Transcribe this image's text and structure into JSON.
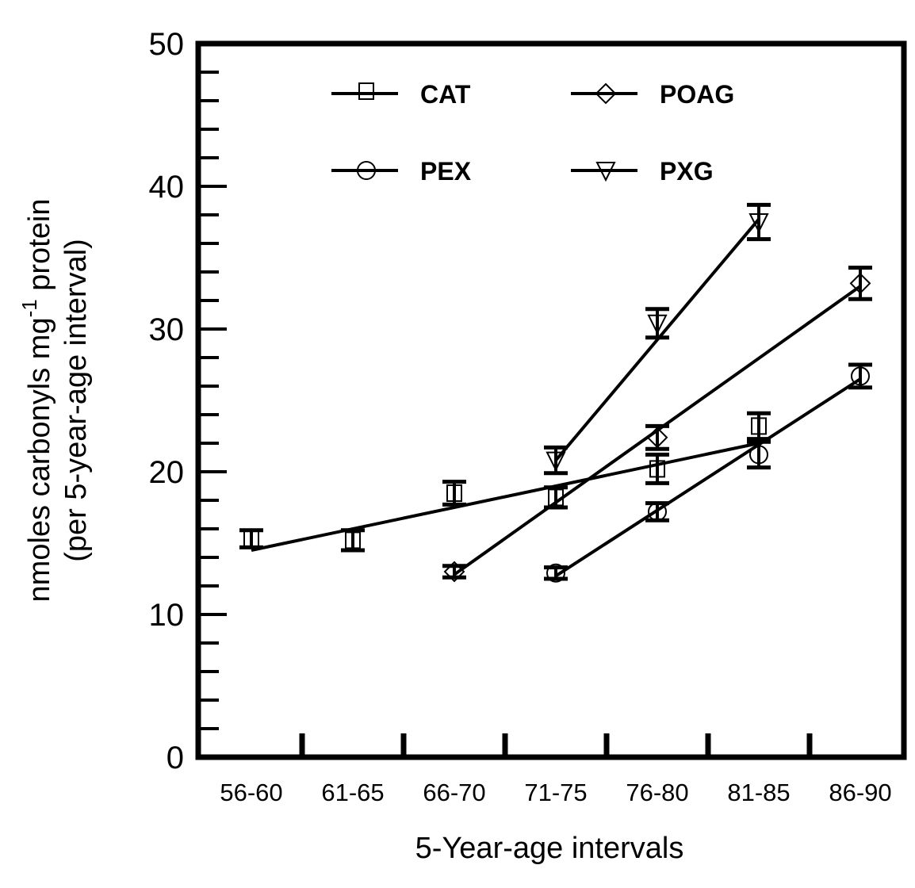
{
  "chart_data": {
    "type": "line",
    "title": "",
    "xlabel": "5-Year-age intervals",
    "ylabel_line1": "nmoles carbonyls mg",
    "ylabel_sup": "-1",
    "ylabel_line1_end": " protein",
    "ylabel_line2": "(per 5-year-age interval)",
    "ylim": [
      0,
      50
    ],
    "yticks": [
      0,
      10,
      20,
      30,
      40,
      50
    ],
    "yminor_step": 2,
    "categories": [
      "56-60",
      "61-65",
      "66-70",
      "71-75",
      "76-80",
      "81-85",
      "86-90"
    ],
    "grid": false,
    "legend_position": "top-center",
    "series": [
      {
        "name": "CAT",
        "marker": "square",
        "values": [
          15.3,
          15.2,
          18.5,
          18.2,
          20.2,
          23.2,
          null
        ],
        "errors": [
          0.6,
          0.7,
          0.8,
          0.7,
          1.0,
          0.9,
          null
        ],
        "fit": [
          14.5,
          22.0
        ],
        "fit_range": [
          "56-60",
          "81-85"
        ]
      },
      {
        "name": "POAG",
        "marker": "diamond",
        "values": [
          null,
          null,
          13.0,
          null,
          22.4,
          null,
          33.2
        ],
        "errors": [
          null,
          null,
          0.4,
          null,
          0.8,
          null,
          1.1
        ],
        "fit": [
          12.8,
          33.0
        ],
        "fit_range": [
          "66-70",
          "86-90"
        ]
      },
      {
        "name": "PEX",
        "marker": "circle",
        "values": [
          null,
          null,
          null,
          12.9,
          17.2,
          21.2,
          26.7
        ],
        "errors": [
          null,
          null,
          null,
          0.4,
          0.6,
          0.9,
          0.8
        ],
        "fit": [
          12.7,
          26.5
        ],
        "fit_range": [
          "71-75",
          "86-90"
        ]
      },
      {
        "name": "PXG",
        "marker": "triangle-down",
        "values": [
          null,
          null,
          null,
          20.8,
          30.4,
          37.5,
          null
        ],
        "errors": [
          null,
          null,
          null,
          0.9,
          1.0,
          1.2,
          null
        ],
        "fit": [
          20.8,
          37.7
        ],
        "fit_range": [
          "71-75",
          "81-85"
        ]
      }
    ]
  },
  "legend": [
    {
      "label": "CAT",
      "marker": "square"
    },
    {
      "label": "POAG",
      "marker": "diamond"
    },
    {
      "label": "PEX",
      "marker": "circle"
    },
    {
      "label": "PXG",
      "marker": "triangle-down"
    }
  ]
}
